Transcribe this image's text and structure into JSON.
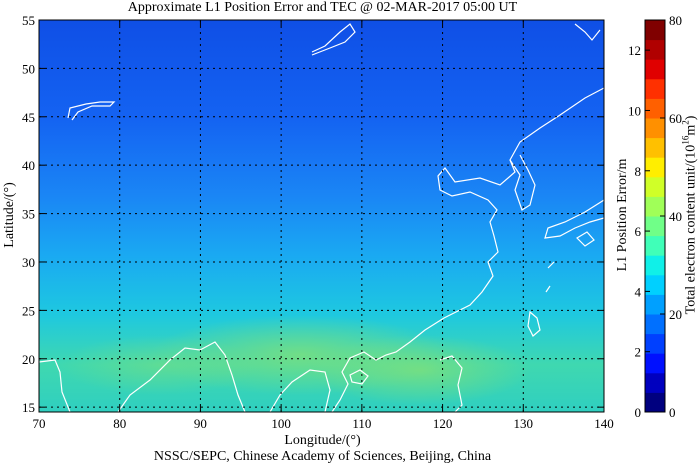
{
  "title": "Approximate L1 Position Error and TEC @ 02-MAR-2017 05:00 UT",
  "footer": "NSSC/SEPC, Chinese Academy of Sciences, Beijing, China",
  "map": {
    "xlabel": "Longitude/(°)",
    "ylabel": "Latitude/(°)",
    "x_ticks": [
      "70",
      "80",
      "90",
      "100",
      "110",
      "120",
      "130",
      "140"
    ],
    "y_ticks": [
      "15",
      "20",
      "25",
      "30",
      "35",
      "40",
      "45",
      "50",
      "55"
    ],
    "lon_range": [
      70,
      140
    ],
    "lat_range": [
      14.5,
      55
    ],
    "grid": "dotted",
    "coastline_color": "#ffffff"
  },
  "colorbar": {
    "left_label": "L1 Position Error/m",
    "right_label_main": "Total electron content unit/(10",
    "right_label_sup1": "16",
    "right_label_mid": "m",
    "right_label_sup2": "2",
    "right_label_end": ")",
    "left_ticks": [
      "0",
      "2",
      "4",
      "6",
      "8",
      "10",
      "12"
    ],
    "right_ticks": [
      "0",
      "20",
      "40",
      "60",
      "80"
    ],
    "error_range": [
      0,
      13
    ],
    "tec_range": [
      0,
      80
    ]
  },
  "chart_data": {
    "type": "heatmap",
    "title": "Approximate L1 Position Error and TEC @ 02-MAR-2017 05:00 UT",
    "xlabel": "Longitude/(°)",
    "ylabel": "Latitude/(°)",
    "xlim": [
      70,
      140
    ],
    "ylim": [
      14.5,
      55
    ],
    "approx_tec_by_latitude": [
      {
        "lat": 55,
        "tec": 10
      },
      {
        "lat": 45,
        "tec": 14
      },
      {
        "lat": 35,
        "tec": 20
      },
      {
        "lat": 28,
        "tec": 25
      },
      {
        "lat": 22,
        "tec": 30
      },
      {
        "lat": 18,
        "tec": 33
      },
      {
        "lat": 15,
        "tec": 31
      }
    ]
  }
}
